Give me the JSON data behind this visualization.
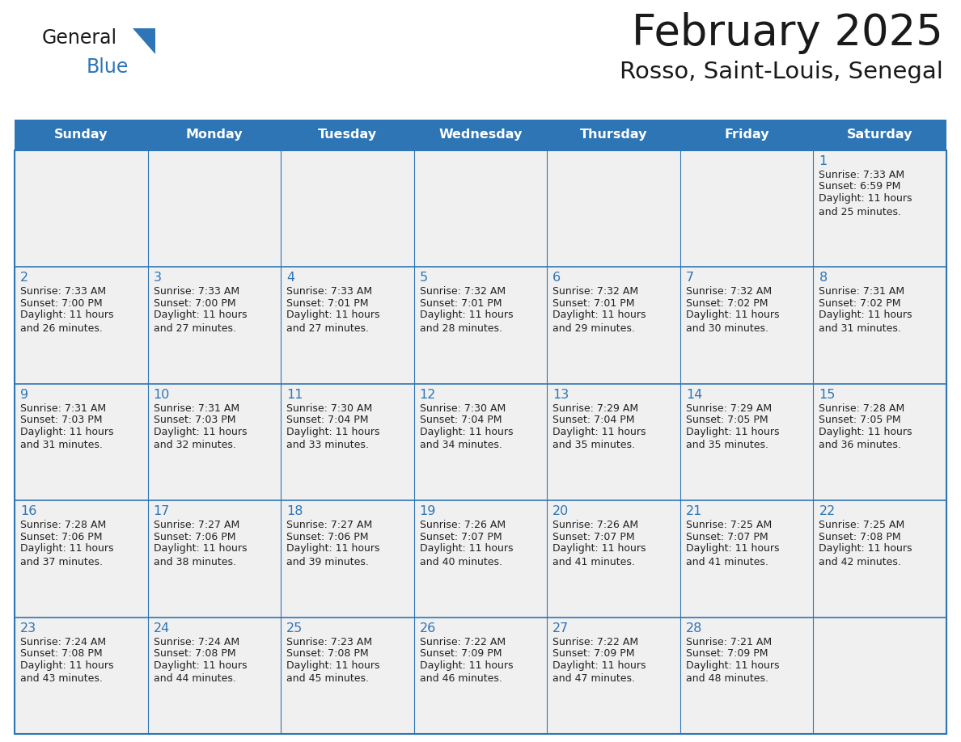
{
  "title": "February 2025",
  "subtitle": "Rosso, Saint-Louis, Senegal",
  "days_of_week": [
    "Sunday",
    "Monday",
    "Tuesday",
    "Wednesday",
    "Thursday",
    "Friday",
    "Saturday"
  ],
  "header_bg": "#2E75B6",
  "header_text": "#FFFFFF",
  "cell_bg": "#F0F0F0",
  "day_num_color": "#2E75B6",
  "text_color": "#222222",
  "border_color": "#2E75B6",
  "title_color": "#1a1a1a",
  "logo_general_color": "#1a1a1a",
  "logo_blue_color": "#2E75B6",
  "logo_triangle_color": "#2E75B6",
  "calendar_data": [
    [
      {
        "day": "",
        "sunrise": "",
        "sunset": "",
        "daylight": ""
      },
      {
        "day": "",
        "sunrise": "",
        "sunset": "",
        "daylight": ""
      },
      {
        "day": "",
        "sunrise": "",
        "sunset": "",
        "daylight": ""
      },
      {
        "day": "",
        "sunrise": "",
        "sunset": "",
        "daylight": ""
      },
      {
        "day": "",
        "sunrise": "",
        "sunset": "",
        "daylight": ""
      },
      {
        "day": "",
        "sunrise": "",
        "sunset": "",
        "daylight": ""
      },
      {
        "day": "1",
        "sunrise": "7:33 AM",
        "sunset": "6:59 PM",
        "daylight": "11 hours\nand 25 minutes."
      }
    ],
    [
      {
        "day": "2",
        "sunrise": "7:33 AM",
        "sunset": "7:00 PM",
        "daylight": "11 hours\nand 26 minutes."
      },
      {
        "day": "3",
        "sunrise": "7:33 AM",
        "sunset": "7:00 PM",
        "daylight": "11 hours\nand 27 minutes."
      },
      {
        "day": "4",
        "sunrise": "7:33 AM",
        "sunset": "7:01 PM",
        "daylight": "11 hours\nand 27 minutes."
      },
      {
        "day": "5",
        "sunrise": "7:32 AM",
        "sunset": "7:01 PM",
        "daylight": "11 hours\nand 28 minutes."
      },
      {
        "day": "6",
        "sunrise": "7:32 AM",
        "sunset": "7:01 PM",
        "daylight": "11 hours\nand 29 minutes."
      },
      {
        "day": "7",
        "sunrise": "7:32 AM",
        "sunset": "7:02 PM",
        "daylight": "11 hours\nand 30 minutes."
      },
      {
        "day": "8",
        "sunrise": "7:31 AM",
        "sunset": "7:02 PM",
        "daylight": "11 hours\nand 31 minutes."
      }
    ],
    [
      {
        "day": "9",
        "sunrise": "7:31 AM",
        "sunset": "7:03 PM",
        "daylight": "11 hours\nand 31 minutes."
      },
      {
        "day": "10",
        "sunrise": "7:31 AM",
        "sunset": "7:03 PM",
        "daylight": "11 hours\nand 32 minutes."
      },
      {
        "day": "11",
        "sunrise": "7:30 AM",
        "sunset": "7:04 PM",
        "daylight": "11 hours\nand 33 minutes."
      },
      {
        "day": "12",
        "sunrise": "7:30 AM",
        "sunset": "7:04 PM",
        "daylight": "11 hours\nand 34 minutes."
      },
      {
        "day": "13",
        "sunrise": "7:29 AM",
        "sunset": "7:04 PM",
        "daylight": "11 hours\nand 35 minutes."
      },
      {
        "day": "14",
        "sunrise": "7:29 AM",
        "sunset": "7:05 PM",
        "daylight": "11 hours\nand 35 minutes."
      },
      {
        "day": "15",
        "sunrise": "7:28 AM",
        "sunset": "7:05 PM",
        "daylight": "11 hours\nand 36 minutes."
      }
    ],
    [
      {
        "day": "16",
        "sunrise": "7:28 AM",
        "sunset": "7:06 PM",
        "daylight": "11 hours\nand 37 minutes."
      },
      {
        "day": "17",
        "sunrise": "7:27 AM",
        "sunset": "7:06 PM",
        "daylight": "11 hours\nand 38 minutes."
      },
      {
        "day": "18",
        "sunrise": "7:27 AM",
        "sunset": "7:06 PM",
        "daylight": "11 hours\nand 39 minutes."
      },
      {
        "day": "19",
        "sunrise": "7:26 AM",
        "sunset": "7:07 PM",
        "daylight": "11 hours\nand 40 minutes."
      },
      {
        "day": "20",
        "sunrise": "7:26 AM",
        "sunset": "7:07 PM",
        "daylight": "11 hours\nand 41 minutes."
      },
      {
        "day": "21",
        "sunrise": "7:25 AM",
        "sunset": "7:07 PM",
        "daylight": "11 hours\nand 41 minutes."
      },
      {
        "day": "22",
        "sunrise": "7:25 AM",
        "sunset": "7:08 PM",
        "daylight": "11 hours\nand 42 minutes."
      }
    ],
    [
      {
        "day": "23",
        "sunrise": "7:24 AM",
        "sunset": "7:08 PM",
        "daylight": "11 hours\nand 43 minutes."
      },
      {
        "day": "24",
        "sunrise": "7:24 AM",
        "sunset": "7:08 PM",
        "daylight": "11 hours\nand 44 minutes."
      },
      {
        "day": "25",
        "sunrise": "7:23 AM",
        "sunset": "7:08 PM",
        "daylight": "11 hours\nand 45 minutes."
      },
      {
        "day": "26",
        "sunrise": "7:22 AM",
        "sunset": "7:09 PM",
        "daylight": "11 hours\nand 46 minutes."
      },
      {
        "day": "27",
        "sunrise": "7:22 AM",
        "sunset": "7:09 PM",
        "daylight": "11 hours\nand 47 minutes."
      },
      {
        "day": "28",
        "sunrise": "7:21 AM",
        "sunset": "7:09 PM",
        "daylight": "11 hours\nand 48 minutes."
      },
      {
        "day": "",
        "sunrise": "",
        "sunset": "",
        "daylight": ""
      }
    ]
  ]
}
